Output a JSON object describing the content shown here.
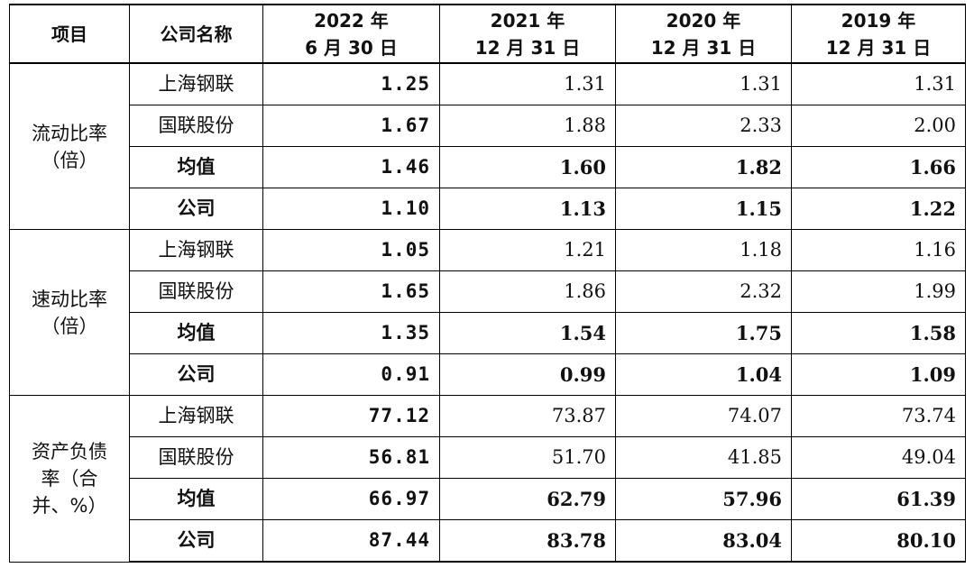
{
  "table": {
    "headers": {
      "item": "项目",
      "company": "公司名称",
      "col1": [
        "2022 年",
        "6 月 30 日"
      ],
      "col2": [
        "2021 年",
        "12 月 31 日"
      ],
      "col3": [
        "2020 年",
        "12 月 31 日"
      ],
      "col4": [
        "2019 年",
        "12 月 31 日"
      ]
    },
    "groups": [
      {
        "metric": [
          "流动比率",
          "（倍）"
        ],
        "rows": [
          {
            "company": "上海钢联",
            "values": [
              "1.25",
              "1.31",
              "1.31",
              "1.31"
            ],
            "emphasis": false
          },
          {
            "company": "国联股份",
            "values": [
              "1.67",
              "1.88",
              "2.33",
              "2.00"
            ],
            "emphasis": false
          },
          {
            "company": "均值",
            "values": [
              "1.46",
              "1.60",
              "1.82",
              "1.66"
            ],
            "emphasis": true
          },
          {
            "company": "公司",
            "values": [
              "1.10",
              "1.13",
              "1.15",
              "1.22"
            ],
            "emphasis": true
          }
        ]
      },
      {
        "metric": [
          "速动比率",
          "（倍）"
        ],
        "rows": [
          {
            "company": "上海钢联",
            "values": [
              "1.05",
              "1.21",
              "1.18",
              "1.16"
            ],
            "emphasis": false
          },
          {
            "company": "国联股份",
            "values": [
              "1.65",
              "1.86",
              "2.32",
              "1.99"
            ],
            "emphasis": false
          },
          {
            "company": "均值",
            "values": [
              "1.35",
              "1.54",
              "1.75",
              "1.58"
            ],
            "emphasis": true
          },
          {
            "company": "公司",
            "values": [
              "0.91",
              "0.99",
              "1.04",
              "1.09"
            ],
            "emphasis": true
          }
        ]
      },
      {
        "metric": [
          "资产负债",
          "率（合",
          "并、%）"
        ],
        "rows": [
          {
            "company": "上海钢联",
            "values": [
              "77.12",
              "73.87",
              "74.07",
              "73.74"
            ],
            "emphasis": false
          },
          {
            "company": "国联股份",
            "values": [
              "56.81",
              "51.70",
              "41.85",
              "49.04"
            ],
            "emphasis": false
          },
          {
            "company": "均值",
            "values": [
              "66.97",
              "62.79",
              "57.96",
              "61.39"
            ],
            "emphasis": true
          },
          {
            "company": "公司",
            "values": [
              "87.44",
              "83.78",
              "83.04",
              "80.10"
            ],
            "emphasis": true
          }
        ]
      }
    ]
  }
}
